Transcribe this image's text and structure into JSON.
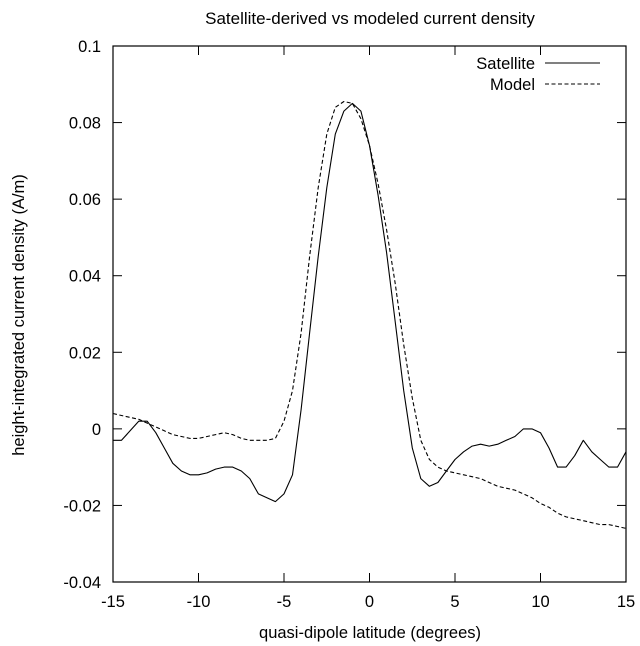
{
  "chart_data": {
    "type": "line",
    "title": "Satellite-derived vs modeled current density",
    "xlabel": "quasi-dipole latitude (degrees)",
    "ylabel": "height-integrated current density (A/m)",
    "xlim": [
      -15,
      15
    ],
    "ylim": [
      -0.04,
      0.1
    ],
    "xticks": [
      -15,
      -10,
      -5,
      0,
      5,
      10,
      15
    ],
    "xtick_labels": [
      "-15",
      "-10",
      "-5",
      "0",
      "5",
      "10",
      "15"
    ],
    "yticks": [
      -0.04,
      -0.02,
      0,
      0.02,
      0.04,
      0.06,
      0.08,
      0.1
    ],
    "ytick_labels": [
      "-0.04",
      "-0.02",
      "0",
      "0.02",
      "0.04",
      "0.06",
      "0.08",
      "0.1"
    ],
    "grid": false,
    "legend_position": "top-right",
    "series": [
      {
        "name": "Satellite",
        "line_style": "solid",
        "color": "#000000",
        "x": [
          -15.0,
          -14.5,
          -14.0,
          -13.5,
          -13.0,
          -12.5,
          -12.0,
          -11.5,
          -11.0,
          -10.5,
          -10.0,
          -9.5,
          -9.0,
          -8.5,
          -8.0,
          -7.5,
          -7.0,
          -6.5,
          -6.0,
          -5.5,
          -5.0,
          -4.5,
          -4.0,
          -3.5,
          -3.0,
          -2.5,
          -2.0,
          -1.5,
          -1.0,
          -0.5,
          0.0,
          0.5,
          1.0,
          1.5,
          2.0,
          2.5,
          3.0,
          3.5,
          4.0,
          4.5,
          5.0,
          5.5,
          6.0,
          6.5,
          7.0,
          7.5,
          8.0,
          8.5,
          9.0,
          9.5,
          10.0,
          10.5,
          11.0,
          11.5,
          12.0,
          12.5,
          13.0,
          13.5,
          14.0,
          14.5,
          15.0
        ],
        "y": [
          -0.003,
          -0.003,
          -0.0005,
          0.002,
          0.002,
          -0.001,
          -0.005,
          -0.009,
          -0.011,
          -0.012,
          -0.012,
          -0.0115,
          -0.0105,
          -0.01,
          -0.01,
          -0.011,
          -0.013,
          -0.017,
          -0.018,
          -0.019,
          -0.017,
          -0.012,
          0.005,
          0.025,
          0.045,
          0.063,
          0.077,
          0.083,
          0.085,
          0.083,
          0.074,
          0.061,
          0.046,
          0.028,
          0.01,
          -0.005,
          -0.013,
          -0.015,
          -0.014,
          -0.011,
          -0.008,
          -0.006,
          -0.0045,
          -0.004,
          -0.0045,
          -0.004,
          -0.003,
          -0.002,
          0.0,
          0.0,
          -0.001,
          -0.005,
          -0.01,
          -0.01,
          -0.007,
          -0.003,
          -0.006,
          -0.008,
          -0.01,
          -0.01,
          -0.006
        ]
      },
      {
        "name": "Model",
        "line_style": "dashed",
        "color": "#000000",
        "x": [
          -15.0,
          -14.5,
          -14.0,
          -13.5,
          -13.0,
          -12.5,
          -12.0,
          -11.5,
          -11.0,
          -10.5,
          -10.0,
          -9.5,
          -9.0,
          -8.5,
          -8.0,
          -7.5,
          -7.0,
          -6.5,
          -6.0,
          -5.5,
          -5.0,
          -4.5,
          -4.0,
          -3.5,
          -3.0,
          -2.5,
          -2.0,
          -1.5,
          -1.0,
          -0.5,
          0.0,
          0.5,
          1.0,
          1.5,
          2.0,
          2.5,
          3.0,
          3.5,
          4.0,
          4.5,
          5.0,
          5.5,
          6.0,
          6.5,
          7.0,
          7.5,
          8.0,
          8.5,
          9.0,
          9.5,
          10.0,
          10.5,
          11.0,
          11.5,
          12.0,
          12.5,
          13.0,
          13.5,
          14.0,
          14.5,
          15.0
        ],
        "y": [
          0.004,
          0.0035,
          0.003,
          0.0025,
          0.0015,
          0.0005,
          -0.0005,
          -0.0015,
          -0.002,
          -0.0025,
          -0.0025,
          -0.002,
          -0.0015,
          -0.001,
          -0.0015,
          -0.0025,
          -0.003,
          -0.003,
          -0.003,
          -0.0025,
          0.002,
          0.01,
          0.025,
          0.045,
          0.063,
          0.077,
          0.084,
          0.0855,
          0.085,
          0.081,
          0.074,
          0.064,
          0.052,
          0.038,
          0.022,
          0.008,
          -0.003,
          -0.008,
          -0.01,
          -0.011,
          -0.0115,
          -0.012,
          -0.0125,
          -0.013,
          -0.014,
          -0.015,
          -0.0155,
          -0.016,
          -0.017,
          -0.018,
          -0.0195,
          -0.0205,
          -0.022,
          -0.023,
          -0.0235,
          -0.024,
          -0.0245,
          -0.025,
          -0.025,
          -0.0255,
          -0.026
        ]
      }
    ]
  }
}
